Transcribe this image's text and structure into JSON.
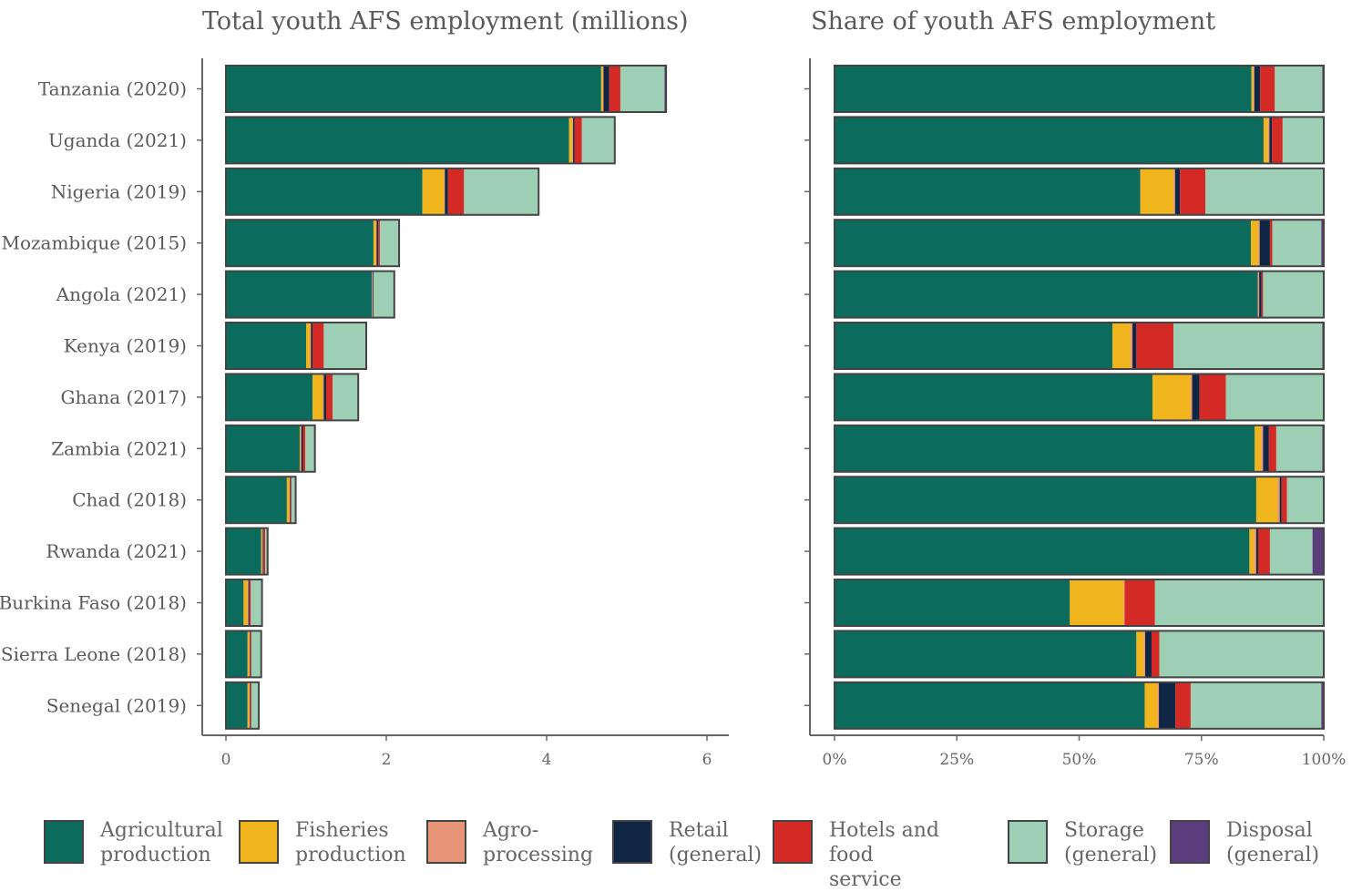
{
  "chart_data": [
    {
      "type": "bar",
      "orientation": "horizontal",
      "stacked": true,
      "title": "Total youth AFS employment (millions)",
      "xlabel": "",
      "ylabel": "",
      "xlim": [
        0,
        6
      ],
      "x_ticks": [
        "0",
        "2",
        "4",
        "6"
      ],
      "categories": [
        "Tanzania (2020)",
        "Uganda (2021)",
        "Nigeria (2019)",
        "Mozambique (2015)",
        "Angola (2021)",
        "Kenya (2019)",
        "Ghana (2017)",
        "Zambia (2021)",
        "Chad (2018)",
        "Rwanda (2021)",
        "Burkina Faso (2018)",
        "Sierra Leone (2018)",
        "Senegal (2019)"
      ],
      "series": [
        {
          "name": "Agricultural production",
          "values": [
            4.68,
            4.28,
            2.45,
            1.84,
            1.82,
            1.0,
            1.08,
            0.92,
            0.76,
            0.44,
            0.22,
            0.27,
            0.27
          ]
        },
        {
          "name": "Fisheries production",
          "values": [
            0.02,
            0.04,
            0.27,
            0.03,
            0.0,
            0.05,
            0.13,
            0.01,
            0.03,
            0.01,
            0.05,
            0.02,
            0.02
          ]
        },
        {
          "name": "Agro-processing",
          "values": [
            0.01,
            0.01,
            0.01,
            0.01,
            0.01,
            0.01,
            0.01,
            0.01,
            0.01,
            0.01,
            0.01,
            0.01,
            0.01
          ]
        },
        {
          "name": "Retail (general)",
          "values": [
            0.07,
            0.02,
            0.04,
            0.02,
            0.01,
            0.02,
            0.03,
            0.02,
            0.01,
            0.01,
            0.01,
            0.01,
            0.01
          ]
        },
        {
          "name": "Hotels and food service",
          "values": [
            0.14,
            0.09,
            0.2,
            0.02,
            0.0,
            0.14,
            0.08,
            0.03,
            0.01,
            0.02,
            0.02,
            0.01,
            0.01
          ]
        },
        {
          "name": "Storage (general)",
          "values": [
            0.55,
            0.41,
            0.93,
            0.23,
            0.26,
            0.52,
            0.32,
            0.11,
            0.05,
            0.02,
            0.14,
            0.12,
            0.09
          ]
        },
        {
          "name": "Disposal (general)",
          "values": [
            0.02,
            0.0,
            0.0,
            0.01,
            0.0,
            0.01,
            0.0,
            0.01,
            0.0,
            0.01,
            0.0,
            0.0,
            0.0
          ]
        }
      ]
    },
    {
      "type": "bar",
      "orientation": "horizontal",
      "stacked": true,
      "title": "Share of youth AFS employment",
      "xlabel": "",
      "ylabel": "",
      "xlim": [
        0,
        100
      ],
      "x_ticks": [
        "0%",
        "25%",
        "50%",
        "75%",
        "100%"
      ],
      "categories": [
        "Tanzania (2020)",
        "Uganda (2021)",
        "Nigeria (2019)",
        "Mozambique (2015)",
        "Angola (2021)",
        "Kenya (2019)",
        "Ghana (2017)",
        "Zambia (2021)",
        "Chad (2018)",
        "Rwanda (2021)",
        "Burkina Faso (2018)",
        "Sierra Leone (2018)",
        "Senegal (2019)"
      ],
      "series": [
        {
          "name": "Agricultural production",
          "values": [
            85.2,
            87.7,
            62.5,
            85.1,
            86.5,
            56.8,
            65.0,
            85.9,
            86.2,
            84.8,
            48.1,
            61.7,
            63.4
          ]
        },
        {
          "name": "Fisheries production",
          "values": [
            0.4,
            0.9,
            6.8,
            1.5,
            0.0,
            3.7,
            7.8,
            1.3,
            4.4,
            1.0,
            11.0,
            1.5,
            2.6
          ]
        },
        {
          "name": "Agro-processing",
          "values": [
            0.2,
            0.3,
            0.3,
            0.3,
            0.3,
            0.4,
            0.3,
            0.4,
            0.4,
            0.4,
            0.2,
            0.3,
            0.3
          ]
        },
        {
          "name": "Retail (general)",
          "values": [
            1.2,
            0.5,
            1.0,
            2.1,
            0.5,
            0.8,
            1.5,
            1.2,
            0.4,
            0.4,
            0.0,
            1.3,
            3.4
          ]
        },
        {
          "name": "Hotels and food service",
          "values": [
            3.0,
            2.2,
            5.2,
            0.5,
            0.3,
            7.6,
            5.4,
            1.5,
            1.1,
            2.4,
            6.2,
            1.6,
            3.1
          ]
        },
        {
          "name": "Storage (general)",
          "values": [
            9.7,
            8.4,
            24.2,
            10.0,
            12.4,
            30.4,
            20.0,
            9.4,
            7.5,
            8.7,
            34.5,
            33.6,
            26.7
          ]
        },
        {
          "name": "Disposal (general)",
          "values": [
            0.3,
            0.0,
            0.0,
            0.5,
            0.0,
            0.3,
            0.0,
            0.3,
            0.0,
            2.3,
            0.0,
            0.0,
            0.5
          ]
        }
      ]
    }
  ],
  "colors": {
    "Agricultural production": "#0b6b5c",
    "Fisheries production": "#f0b41c",
    "Agro-processing": "#e8957a",
    "Retail (general)": "#0f2744",
    "Hotels and food service": "#d42a26",
    "Storage (general)": "#9dcfb4",
    "Disposal (general)": "#5b3d7d",
    "bar_outline": "#444444",
    "axis": "#666666",
    "text": "#5a5a5a"
  },
  "legend": {
    "items": [
      {
        "key": "Agricultural production",
        "label": "Agricultural\nproduction"
      },
      {
        "key": "Fisheries production",
        "label": "Fisheries\nproduction"
      },
      {
        "key": "Agro-processing",
        "label": "Agro-\nprocessing"
      },
      {
        "key": "Retail (general)",
        "label": "Retail\n(general)"
      },
      {
        "key": "Hotels and food service",
        "label": "Hotels and food\nservice"
      },
      {
        "key": "Storage (general)",
        "label": "Storage\n(general)"
      },
      {
        "key": "Disposal (general)",
        "label": "Disposal\n(general)"
      }
    ],
    "position": "bottom"
  }
}
